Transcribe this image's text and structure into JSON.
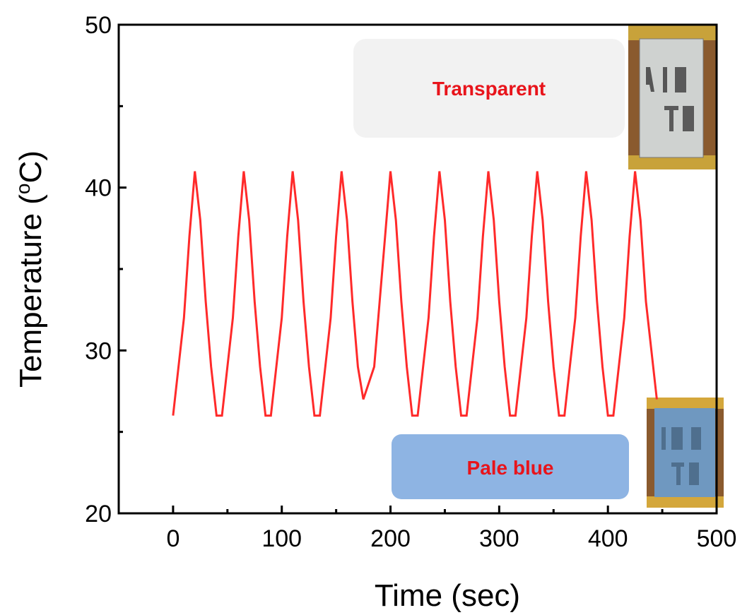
{
  "chart_data": {
    "type": "line",
    "xlabel": "Time (sec)",
    "ylabel_main": "Temperature (",
    "ylabel_sup": "o",
    "ylabel_end": "C)",
    "xlim": [
      -50,
      500
    ],
    "ylim": [
      20,
      50
    ],
    "x_ticks": [
      "0",
      "100",
      "200",
      "300",
      "400",
      "500"
    ],
    "y_ticks": [
      "20",
      "30",
      "40",
      "50"
    ],
    "x_tick_values": [
      0,
      100,
      200,
      300,
      400,
      500
    ],
    "y_tick_values": [
      20,
      30,
      40,
      50
    ],
    "x_minor_ticks": [
      -50,
      50,
      150,
      250,
      350,
      450
    ],
    "y_minor_ticks": [
      25,
      35,
      45
    ],
    "grid": false,
    "line_color": "#ff2a2a",
    "series": [
      {
        "x": [
          0,
          5,
          10,
          15,
          20,
          25,
          30,
          35,
          40,
          45,
          50,
          55,
          60,
          65,
          70,
          75,
          80,
          85,
          90,
          95,
          100,
          105,
          110,
          115,
          120,
          125,
          130,
          135,
          140,
          145,
          150,
          155,
          160,
          165,
          170,
          175,
          180,
          185,
          190,
          195,
          200,
          205,
          210,
          215,
          220,
          225,
          230,
          235,
          240,
          245,
          250,
          255,
          260,
          265,
          270,
          275,
          280,
          285,
          290,
          295,
          300,
          305,
          310,
          315,
          320,
          325,
          330,
          335,
          340,
          345,
          350,
          355,
          360,
          365,
          370,
          375,
          380,
          385,
          390,
          395,
          400,
          405,
          410,
          415,
          420,
          425,
          430,
          435,
          440,
          445
        ],
        "y": [
          26,
          29,
          32,
          37,
          41,
          38,
          33,
          29,
          26,
          26,
          29,
          32,
          37,
          41,
          38,
          33,
          29,
          26,
          26,
          29,
          32,
          37,
          41,
          38,
          33,
          29,
          26,
          26,
          29,
          32,
          37,
          41,
          38,
          33,
          29,
          27,
          28,
          29,
          33,
          37,
          41,
          38,
          33,
          29,
          26,
          26,
          29,
          32,
          37,
          41,
          38,
          33,
          29,
          26,
          26,
          29,
          32,
          37,
          41,
          38,
          33,
          29,
          26,
          26,
          29,
          32,
          37,
          41,
          38,
          33,
          29,
          26,
          26,
          29,
          32,
          37,
          41,
          38,
          33,
          29,
          26,
          26,
          29,
          32,
          37,
          41,
          38,
          33,
          30,
          27
        ]
      }
    ],
    "annotations": [
      {
        "text": "Transparent",
        "box_color": "#f2f2f2",
        "text_color": "#e8141b"
      },
      {
        "text": "Pale blue",
        "box_color": "#8eb4e3",
        "text_color": "#e8141b"
      }
    ],
    "photos": [
      {
        "name": "photo-transparent-film",
        "icon": "film-photo-icon",
        "tint": "#c9c9c9"
      },
      {
        "name": "photo-pale-blue-film",
        "icon": "film-photo-icon",
        "tint": "#6f98c0"
      }
    ]
  }
}
